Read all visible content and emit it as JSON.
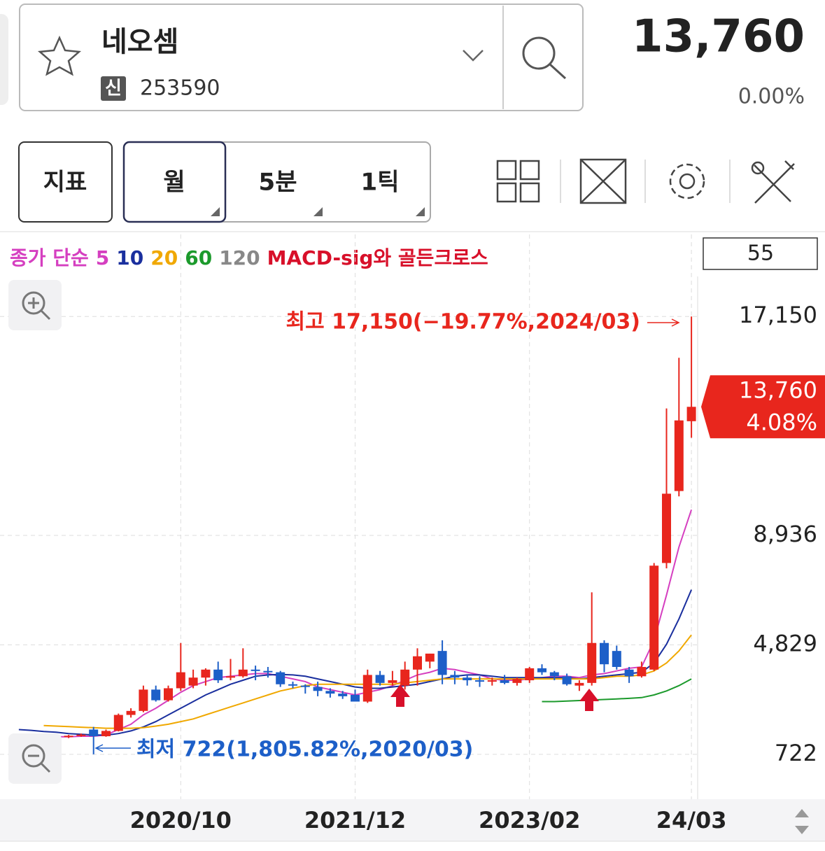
{
  "header": {
    "name": "네오셈",
    "badge": "신",
    "code": "253590",
    "price": "13,760",
    "change": "0.00%"
  },
  "toolbar": {
    "indicator_button": "지표",
    "periods": [
      "월",
      "5분",
      "1틱"
    ]
  },
  "chart_data": {
    "type": "candlestick",
    "legend_prefix": "종가 단순",
    "legend_suffix": "MACD-sig와 골든크로스",
    "count_box": 55,
    "high_label": "최고 17,150(−19.77%,2024/03)",
    "low_label": "최저 722(1,805.82%,2020/03)",
    "current": {
      "value": 13760,
      "label": "13,760"
    },
    "current_change": "4.08%",
    "up_color": "#e8261d",
    "down_color": "#1d5fc8",
    "categories": [
      null,
      null,
      null,
      null,
      null,
      null,
      null,
      null,
      null,
      null,
      null,
      null,
      null,
      "2020/10",
      null,
      null,
      null,
      null,
      null,
      null,
      null,
      null,
      null,
      null,
      null,
      null,
      null,
      "2021/12",
      null,
      null,
      null,
      null,
      null,
      null,
      null,
      null,
      null,
      null,
      null,
      null,
      null,
      "2023/02",
      null,
      null,
      null,
      null,
      null,
      null,
      null,
      null,
      null,
      null,
      null,
      null,
      "24/03"
    ],
    "open": [
      1400,
      1380,
      1350,
      1380,
      1370,
      1420,
      1650,
      1400,
      1600,
      2200,
      2350,
      3150,
      2750,
      3200,
      3300,
      3600,
      3900,
      3600,
      3650,
      3900,
      3850,
      3800,
      3350,
      3300,
      3250,
      3100,
      3000,
      2950,
      2700,
      3700,
      3400,
      3300,
      3900,
      4200,
      4600,
      3700,
      3600,
      3500,
      3450,
      3500,
      3400,
      3500,
      3950,
      3800,
      3650,
      3300,
      3400,
      4900,
      4600,
      3900,
      3650,
      3900,
      7900,
      10600,
      13220
    ],
    "high": [
      1450,
      1420,
      1420,
      1430,
      1450,
      1500,
      1750,
      1650,
      2250,
      2450,
      3300,
      3300,
      3300,
      4900,
      3900,
      3950,
      4200,
      4300,
      4700,
      4050,
      4000,
      3850,
      3450,
      3350,
      3450,
      3200,
      3100,
      3150,
      3900,
      3850,
      3850,
      4200,
      4700,
      4500,
      5000,
      3850,
      3700,
      3650,
      3600,
      3700,
      3600,
      4000,
      4100,
      3850,
      3750,
      3500,
      6800,
      5000,
      4800,
      4000,
      4200,
      7900,
      13700,
      15600,
      17150
    ],
    "low": [
      1350,
      1330,
      1320,
      1340,
      1330,
      1380,
      722,
      1380,
      1580,
      2100,
      2300,
      2700,
      2700,
      3100,
      3200,
      3300,
      3400,
      3500,
      3600,
      3500,
      3600,
      3250,
      3200,
      3000,
      2900,
      2850,
      2800,
      2750,
      2650,
      3300,
      3300,
      3150,
      3300,
      3950,
      3350,
      3350,
      3300,
      3250,
      3300,
      3350,
      3300,
      3400,
      3700,
      3500,
      3300,
      3100,
      3300,
      3800,
      3900,
      3400,
      3600,
      3850,
      7700,
      10400,
      12600
    ],
    "close": [
      1380,
      1350,
      1380,
      1370,
      1420,
      1460,
      1400,
      1600,
      2200,
      2350,
      3150,
      2750,
      3200,
      3800,
      3600,
      3900,
      3500,
      3650,
      3900,
      3850,
      3800,
      3350,
      3300,
      3250,
      3100,
      3000,
      2900,
      2700,
      3700,
      3400,
      3500,
      3900,
      4400,
      4500,
      3700,
      3600,
      3500,
      3450,
      3500,
      3400,
      3550,
      3950,
      3800,
      3650,
      3350,
      3400,
      4900,
      4100,
      4000,
      3650,
      4000,
      7800,
      10500,
      13250,
      13760
    ],
    "series": [
      {
        "name": "5",
        "color": "#d53fc0",
        "values": [
          1400,
          1390,
          1380,
          1380,
          1380,
          1400,
          1400,
          1450,
          1650,
          1850,
          2200,
          2450,
          2750,
          3050,
          3300,
          3450,
          3600,
          3650,
          3700,
          3750,
          3750,
          3650,
          3550,
          3450,
          3250,
          3150,
          3050,
          2950,
          3050,
          3150,
          3300,
          3500,
          3700,
          3800,
          3950,
          3900,
          3800,
          3700,
          3550,
          3500,
          3500,
          3550,
          3600,
          3650,
          3650,
          3600,
          3700,
          3750,
          3850,
          3950,
          4000,
          5000,
          6700,
          8500,
          9900
        ]
      },
      {
        "name": "10",
        "color": "#1a2f9e",
        "values": [
          1650,
          1620,
          1580,
          1550,
          1500,
          1470,
          1450,
          1440,
          1500,
          1600,
          1750,
          1950,
          2200,
          2450,
          2700,
          2950,
          3150,
          3350,
          3500,
          3650,
          3700,
          3720,
          3700,
          3650,
          3550,
          3450,
          3350,
          3250,
          3200,
          3200,
          3250,
          3300,
          3350,
          3450,
          3550,
          3650,
          3700,
          3700,
          3650,
          3600,
          3600,
          3600,
          3600,
          3600,
          3600,
          3550,
          3600,
          3650,
          3700,
          3750,
          3800,
          4150,
          4850,
          5800,
          6900
        ]
      },
      {
        "name": "20",
        "color": "#f0a800",
        "values": [
          null,
          null,
          1800,
          1780,
          1760,
          1740,
          1720,
          1700,
          1700,
          1700,
          1720,
          1780,
          1850,
          1950,
          2050,
          2200,
          2350,
          2500,
          2650,
          2800,
          2950,
          3100,
          3200,
          3300,
          3350,
          3350,
          3350,
          3350,
          3350,
          3350,
          3350,
          3400,
          3450,
          3500,
          3550,
          3550,
          3550,
          3550,
          3550,
          3550,
          3550,
          3550,
          3550,
          3550,
          3550,
          3550,
          3550,
          3600,
          3650,
          3650,
          3700,
          3850,
          4150,
          4600,
          5200
        ]
      },
      {
        "name": "60",
        "color": "#1c9a2c",
        "values": [
          null,
          null,
          null,
          null,
          null,
          null,
          null,
          null,
          null,
          null,
          null,
          null,
          null,
          null,
          null,
          null,
          null,
          null,
          null,
          null,
          null,
          null,
          null,
          null,
          null,
          null,
          null,
          null,
          null,
          null,
          null,
          null,
          null,
          null,
          null,
          null,
          null,
          null,
          null,
          null,
          null,
          null,
          2700,
          2700,
          2720,
          2740,
          2760,
          2780,
          2800,
          2820,
          2850,
          2950,
          3100,
          3300,
          3550
        ]
      },
      {
        "name": "120",
        "color": "#888888"
      }
    ],
    "ylim": [
      -963,
      18652
    ],
    "yticks": [
      722,
      {
        "value": 4829,
        "label": "4,829"
      },
      {
        "value": 8936,
        "label": "8,936"
      },
      {
        "value": 17150,
        "label": "17,150"
      }
    ],
    "grid": true
  }
}
